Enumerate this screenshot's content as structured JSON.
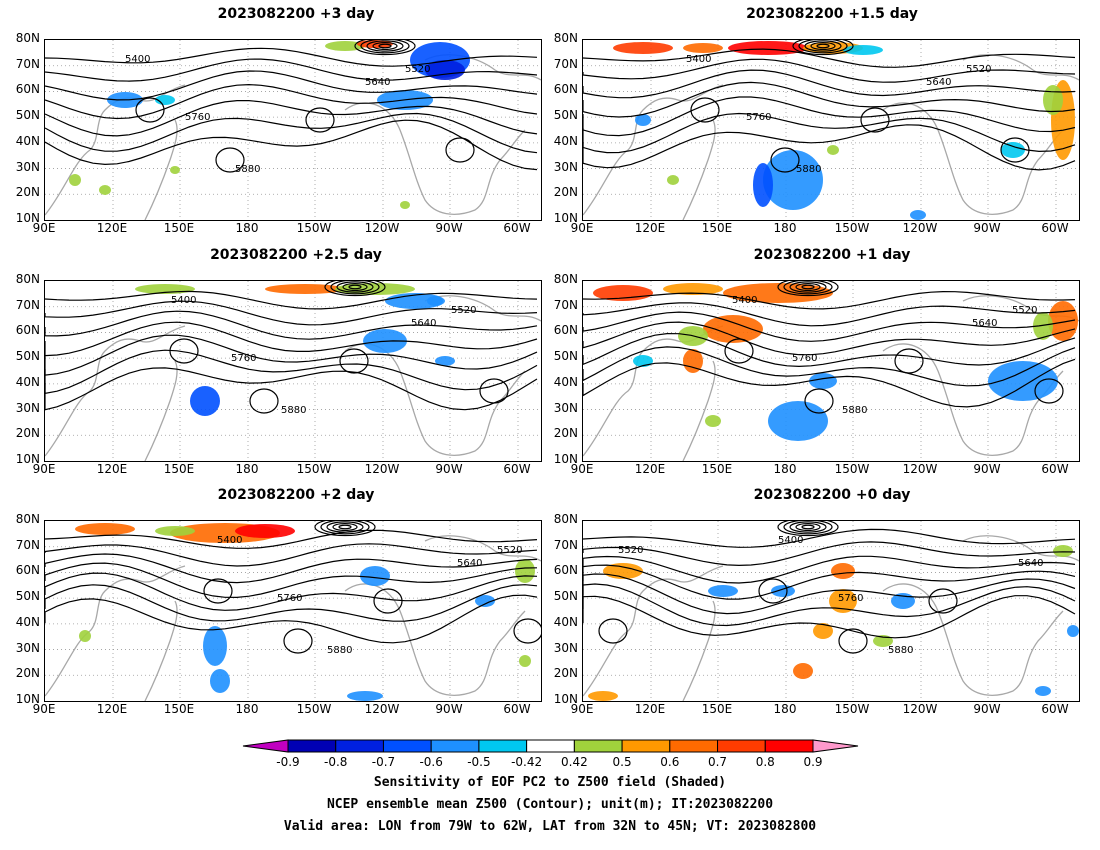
{
  "panels": [
    {
      "title": "2023082200 +3 day"
    },
    {
      "title": "2023082200 +1.5 day"
    },
    {
      "title": "2023082200 +2.5 day"
    },
    {
      "title": "2023082200 +1 day"
    },
    {
      "title": "2023082200 +2 day"
    },
    {
      "title": "2023082200 +0 day"
    }
  ],
  "y_ticks": [
    "80N",
    "70N",
    "60N",
    "50N",
    "40N",
    "30N",
    "20N",
    "10N"
  ],
  "x_ticks": [
    "90E",
    "120E",
    "150E",
    "180",
    "150W",
    "120W",
    "90W",
    "60W"
  ],
  "contour_labels": [
    "5400",
    "5520",
    "5640",
    "5760",
    "5880"
  ],
  "colorbar": {
    "labels": [
      "-0.9",
      "-0.8",
      "-0.7",
      "-0.6",
      "-0.5",
      "-0.42",
      "0.42",
      "0.5",
      "0.6",
      "0.7",
      "0.8",
      "0.9"
    ],
    "colors": [
      "#c000c0",
      "#0000b4",
      "#0020e0",
      "#0050ff",
      "#1e90ff",
      "#00c8f0",
      "#ffffff",
      "#a0d23c",
      "#ff9900",
      "#ff6a00",
      "#ff3c00",
      "#ff0000",
      "#ff99cc"
    ]
  },
  "caption": {
    "line1": "Sensitivity of EOF PC2 to Z500 field (Shaded)",
    "line2": "NCEP ensemble mean Z500 (Contour); unit(m); IT:2023082200",
    "line3": "Valid area: LON from 79W to 62W, LAT from 32N to 45N; VT: 2023082800"
  }
}
